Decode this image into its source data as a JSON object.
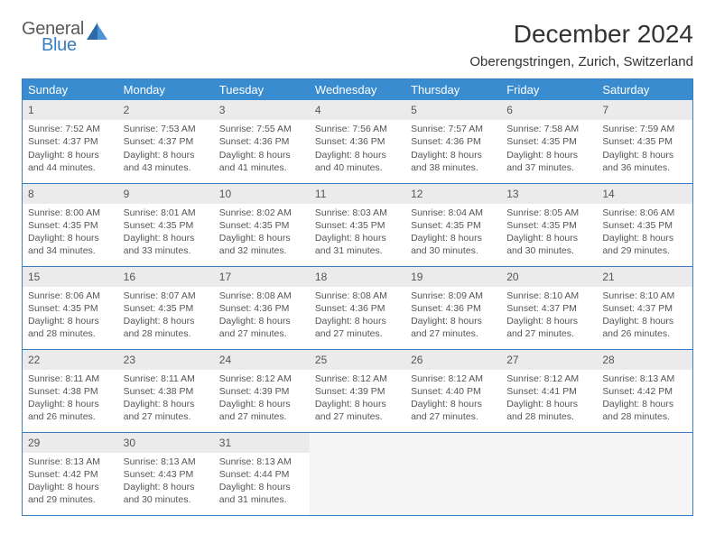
{
  "logo": {
    "general": "General",
    "blue": "Blue"
  },
  "title": "December 2024",
  "location": "Oberengstringen, Zurich, Switzerland",
  "colors": {
    "header_bg": "#3a8cd1",
    "border": "#3a7ebf",
    "daynum_bg": "#ebebeb",
    "text": "#555555",
    "title_text": "#333333",
    "logo_gray": "#5a5a5a",
    "logo_blue": "#3a7ebf",
    "empty_bg": "#f5f5f5"
  },
  "typography": {
    "title_fontsize": 28,
    "location_fontsize": 15,
    "header_fontsize": 13,
    "daynum_fontsize": 12,
    "body_fontsize": 10.5
  },
  "weekdays": [
    "Sunday",
    "Monday",
    "Tuesday",
    "Wednesday",
    "Thursday",
    "Friday",
    "Saturday"
  ],
  "days": [
    {
      "n": "1",
      "sunrise": "7:52 AM",
      "sunset": "4:37 PM",
      "daylight": "8 hours and 44 minutes."
    },
    {
      "n": "2",
      "sunrise": "7:53 AM",
      "sunset": "4:37 PM",
      "daylight": "8 hours and 43 minutes."
    },
    {
      "n": "3",
      "sunrise": "7:55 AM",
      "sunset": "4:36 PM",
      "daylight": "8 hours and 41 minutes."
    },
    {
      "n": "4",
      "sunrise": "7:56 AM",
      "sunset": "4:36 PM",
      "daylight": "8 hours and 40 minutes."
    },
    {
      "n": "5",
      "sunrise": "7:57 AM",
      "sunset": "4:36 PM",
      "daylight": "8 hours and 38 minutes."
    },
    {
      "n": "6",
      "sunrise": "7:58 AM",
      "sunset": "4:35 PM",
      "daylight": "8 hours and 37 minutes."
    },
    {
      "n": "7",
      "sunrise": "7:59 AM",
      "sunset": "4:35 PM",
      "daylight": "8 hours and 36 minutes."
    },
    {
      "n": "8",
      "sunrise": "8:00 AM",
      "sunset": "4:35 PM",
      "daylight": "8 hours and 34 minutes."
    },
    {
      "n": "9",
      "sunrise": "8:01 AM",
      "sunset": "4:35 PM",
      "daylight": "8 hours and 33 minutes."
    },
    {
      "n": "10",
      "sunrise": "8:02 AM",
      "sunset": "4:35 PM",
      "daylight": "8 hours and 32 minutes."
    },
    {
      "n": "11",
      "sunrise": "8:03 AM",
      "sunset": "4:35 PM",
      "daylight": "8 hours and 31 minutes."
    },
    {
      "n": "12",
      "sunrise": "8:04 AM",
      "sunset": "4:35 PM",
      "daylight": "8 hours and 30 minutes."
    },
    {
      "n": "13",
      "sunrise": "8:05 AM",
      "sunset": "4:35 PM",
      "daylight": "8 hours and 30 minutes."
    },
    {
      "n": "14",
      "sunrise": "8:06 AM",
      "sunset": "4:35 PM",
      "daylight": "8 hours and 29 minutes."
    },
    {
      "n": "15",
      "sunrise": "8:06 AM",
      "sunset": "4:35 PM",
      "daylight": "8 hours and 28 minutes."
    },
    {
      "n": "16",
      "sunrise": "8:07 AM",
      "sunset": "4:35 PM",
      "daylight": "8 hours and 28 minutes."
    },
    {
      "n": "17",
      "sunrise": "8:08 AM",
      "sunset": "4:36 PM",
      "daylight": "8 hours and 27 minutes."
    },
    {
      "n": "18",
      "sunrise": "8:08 AM",
      "sunset": "4:36 PM",
      "daylight": "8 hours and 27 minutes."
    },
    {
      "n": "19",
      "sunrise": "8:09 AM",
      "sunset": "4:36 PM",
      "daylight": "8 hours and 27 minutes."
    },
    {
      "n": "20",
      "sunrise": "8:10 AM",
      "sunset": "4:37 PM",
      "daylight": "8 hours and 27 minutes."
    },
    {
      "n": "21",
      "sunrise": "8:10 AM",
      "sunset": "4:37 PM",
      "daylight": "8 hours and 26 minutes."
    },
    {
      "n": "22",
      "sunrise": "8:11 AM",
      "sunset": "4:38 PM",
      "daylight": "8 hours and 26 minutes."
    },
    {
      "n": "23",
      "sunrise": "8:11 AM",
      "sunset": "4:38 PM",
      "daylight": "8 hours and 27 minutes."
    },
    {
      "n": "24",
      "sunrise": "8:12 AM",
      "sunset": "4:39 PM",
      "daylight": "8 hours and 27 minutes."
    },
    {
      "n": "25",
      "sunrise": "8:12 AM",
      "sunset": "4:39 PM",
      "daylight": "8 hours and 27 minutes."
    },
    {
      "n": "26",
      "sunrise": "8:12 AM",
      "sunset": "4:40 PM",
      "daylight": "8 hours and 27 minutes."
    },
    {
      "n": "27",
      "sunrise": "8:12 AM",
      "sunset": "4:41 PM",
      "daylight": "8 hours and 28 minutes."
    },
    {
      "n": "28",
      "sunrise": "8:13 AM",
      "sunset": "4:42 PM",
      "daylight": "8 hours and 28 minutes."
    },
    {
      "n": "29",
      "sunrise": "8:13 AM",
      "sunset": "4:42 PM",
      "daylight": "8 hours and 29 minutes."
    },
    {
      "n": "30",
      "sunrise": "8:13 AM",
      "sunset": "4:43 PM",
      "daylight": "8 hours and 30 minutes."
    },
    {
      "n": "31",
      "sunrise": "8:13 AM",
      "sunset": "4:44 PM",
      "daylight": "8 hours and 31 minutes."
    }
  ],
  "layout": {
    "first_weekday_index": 0,
    "trailing_empty": 4,
    "labels": {
      "sunrise": "Sunrise:",
      "sunset": "Sunset:",
      "daylight": "Daylight:"
    }
  }
}
